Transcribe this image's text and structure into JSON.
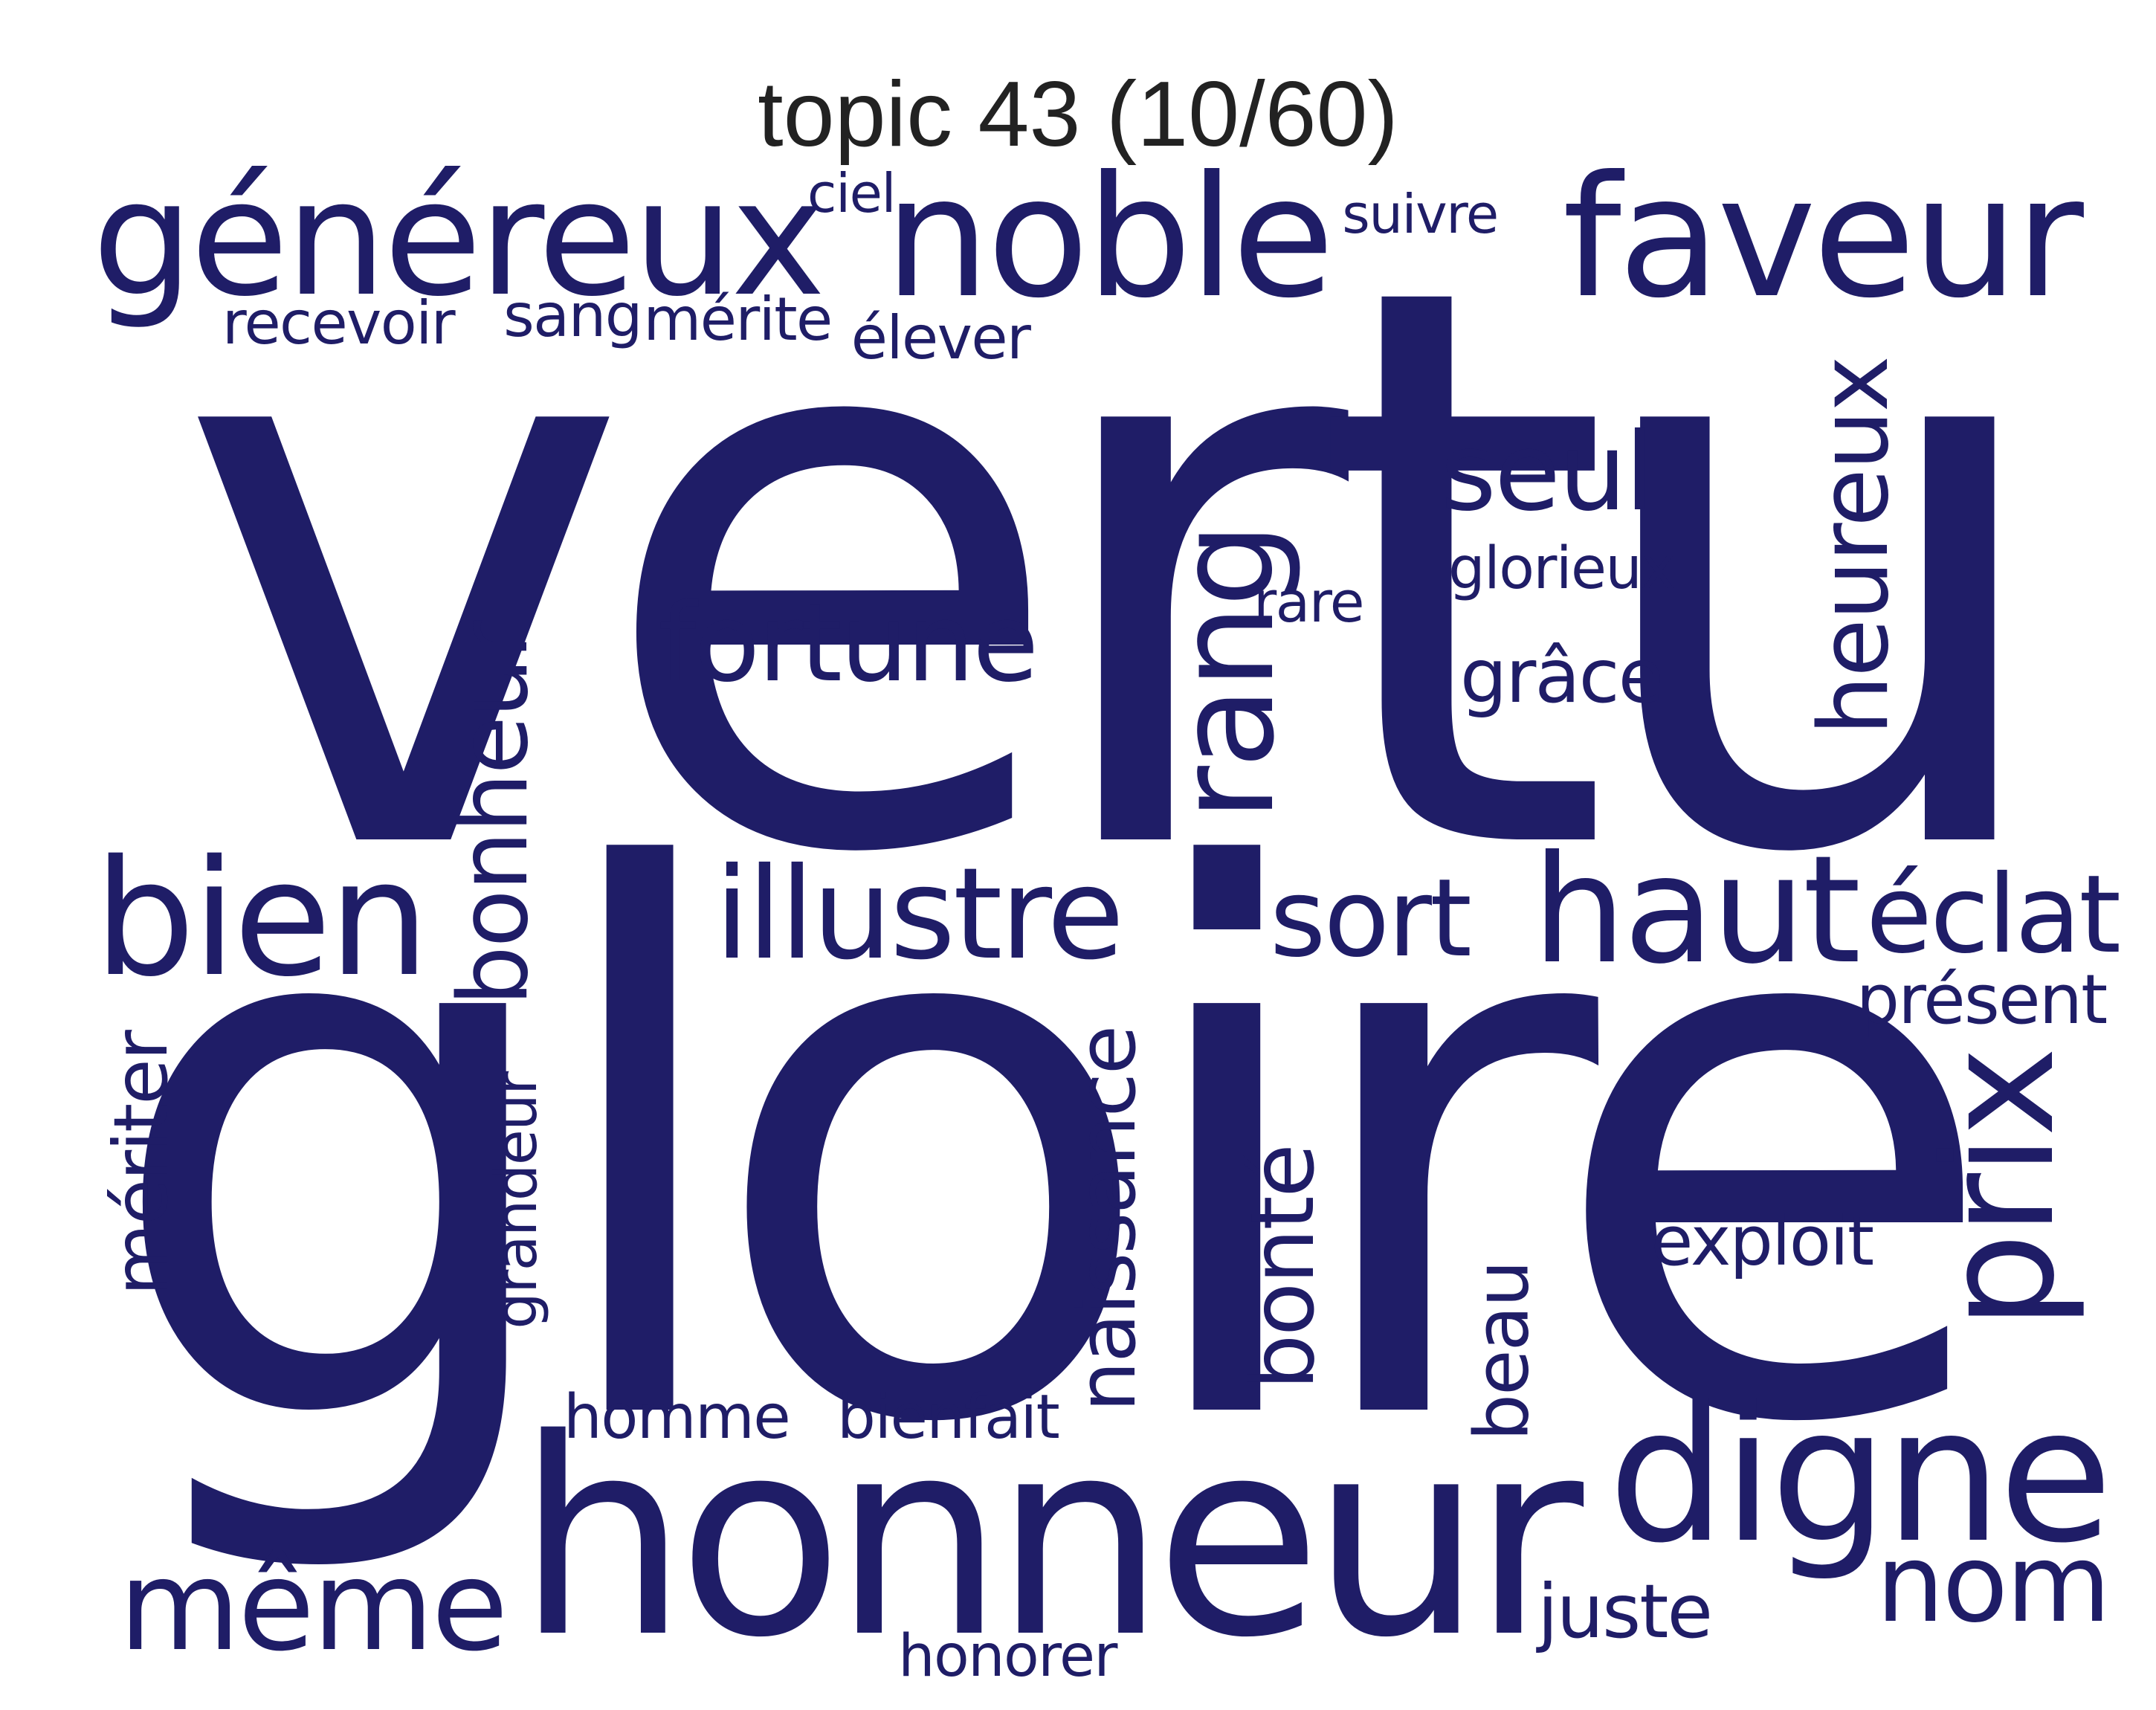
{
  "title": "topic 43 (10/60)",
  "word_color": "#1f1d67",
  "words": {
    "vertu": "vertu",
    "gloire": "gloire",
    "honneur": "honneur",
    "genereux": "généreux",
    "noble": "noble",
    "faveur": "faveur",
    "ciel": "ciel",
    "suivre": "suivre",
    "recevoir": "recevoir",
    "sang": "sang",
    "merite": "mérite",
    "elever": "élever",
    "fortune": "fortune",
    "seul": "seul",
    "glorieux": "glorieux",
    "rare": "rare",
    "grace": "grâce",
    "rang": "rang",
    "heureux": "heureux",
    "bien": "bien",
    "bonheur": "bonheur",
    "illustre": "illustre",
    "sort": "sort",
    "haut": "haut",
    "eclat": "éclat",
    "present": "présent",
    "meriter": "mériter",
    "grandeur": "grandeur",
    "naissance": "naissance",
    "bonte": "bonté",
    "beau": "beau",
    "exploit": "exploit",
    "prix": "prix",
    "homme": "homme",
    "bienfait": "bienfait",
    "digne": "digne",
    "meme": "même",
    "juste": "juste",
    "nom": "nom",
    "honorer": "honorer"
  }
}
